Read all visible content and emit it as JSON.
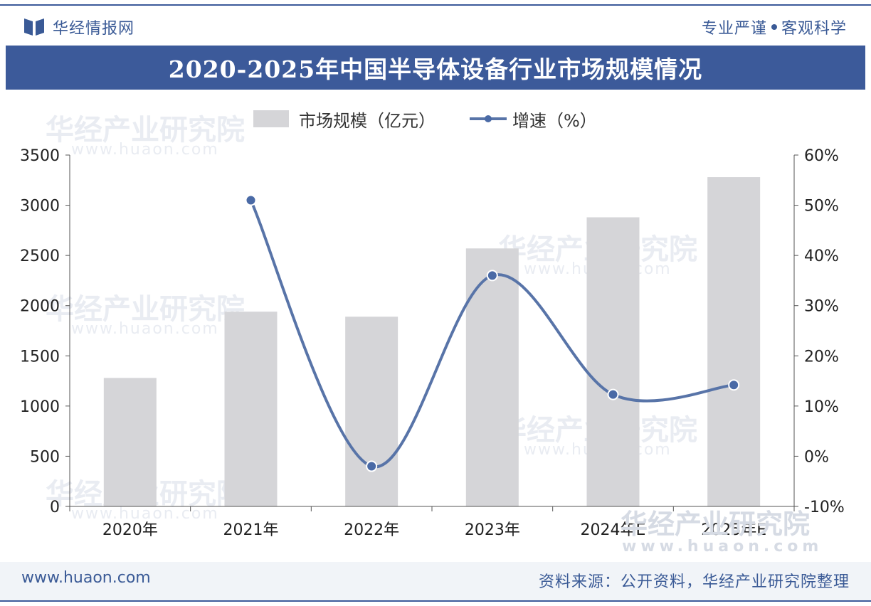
{
  "header": {
    "brand_name": "华经情报网",
    "slogan_left": "专业严谨",
    "slogan_right": "客观科学"
  },
  "watermark": {
    "text": "华经产业研究院",
    "url": "www.huaon.com"
  },
  "footer": {
    "url": "www.huaon.com",
    "source": "资料来源：公开资料，华经产业研究院整理"
  },
  "colors": {
    "title_bar": "#3c5a9a",
    "bar_fill": "#d5d5d8",
    "line": "#5874a8",
    "marker_fill": "#4a6aa6"
  },
  "chart_data": {
    "type": "bar",
    "title": "2020-2025年中国半导体设备行业市场规模情况",
    "categories": [
      "2020年",
      "2021年",
      "2022年",
      "2023年",
      "2024年E",
      "2025年E"
    ],
    "series": [
      {
        "name": "市场规模（亿元）",
        "type": "bar",
        "axis": "left",
        "values": [
          1280,
          1940,
          1890,
          2570,
          2880,
          3280
        ]
      },
      {
        "name": "增速（%）",
        "type": "line",
        "axis": "right",
        "values": [
          null,
          51,
          -2,
          36,
          12.3,
          14.2
        ]
      }
    ],
    "y_left": {
      "min": 0,
      "max": 3500,
      "step": 500,
      "ticks": [
        "0",
        "500",
        "1000",
        "1500",
        "2000",
        "2500",
        "3000",
        "3500"
      ]
    },
    "y_right": {
      "min": -10,
      "max": 60,
      "step": 10,
      "ticks": [
        "-10%",
        "0%",
        "10%",
        "20%",
        "30%",
        "40%",
        "50%",
        "60%"
      ]
    },
    "grid": false,
    "legend": "top-center"
  }
}
